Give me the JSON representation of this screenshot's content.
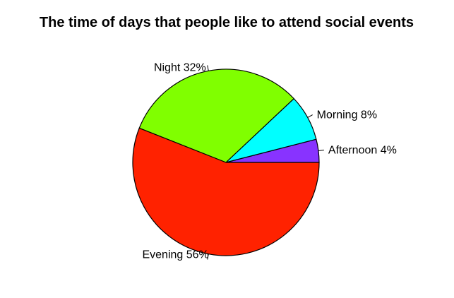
{
  "chart_data": {
    "type": "pie",
    "title": "The time of days that people like to attend social events",
    "slices": [
      {
        "label": "Afternoon 4%",
        "category": "Afternoon",
        "value": 4,
        "color": "#8833ff"
      },
      {
        "label": "Morning 8%",
        "category": "Morning",
        "value": 8,
        "color": "#00ffff"
      },
      {
        "label": "Night 32%",
        "category": "Night",
        "value": 32,
        "color": "#80ff00"
      },
      {
        "label": "Evening 56%",
        "category": "Evening",
        "value": 56,
        "color": "#ff2200"
      }
    ],
    "start_angle": "3 o'clock",
    "direction": "counterclockwise",
    "legend": "none"
  }
}
